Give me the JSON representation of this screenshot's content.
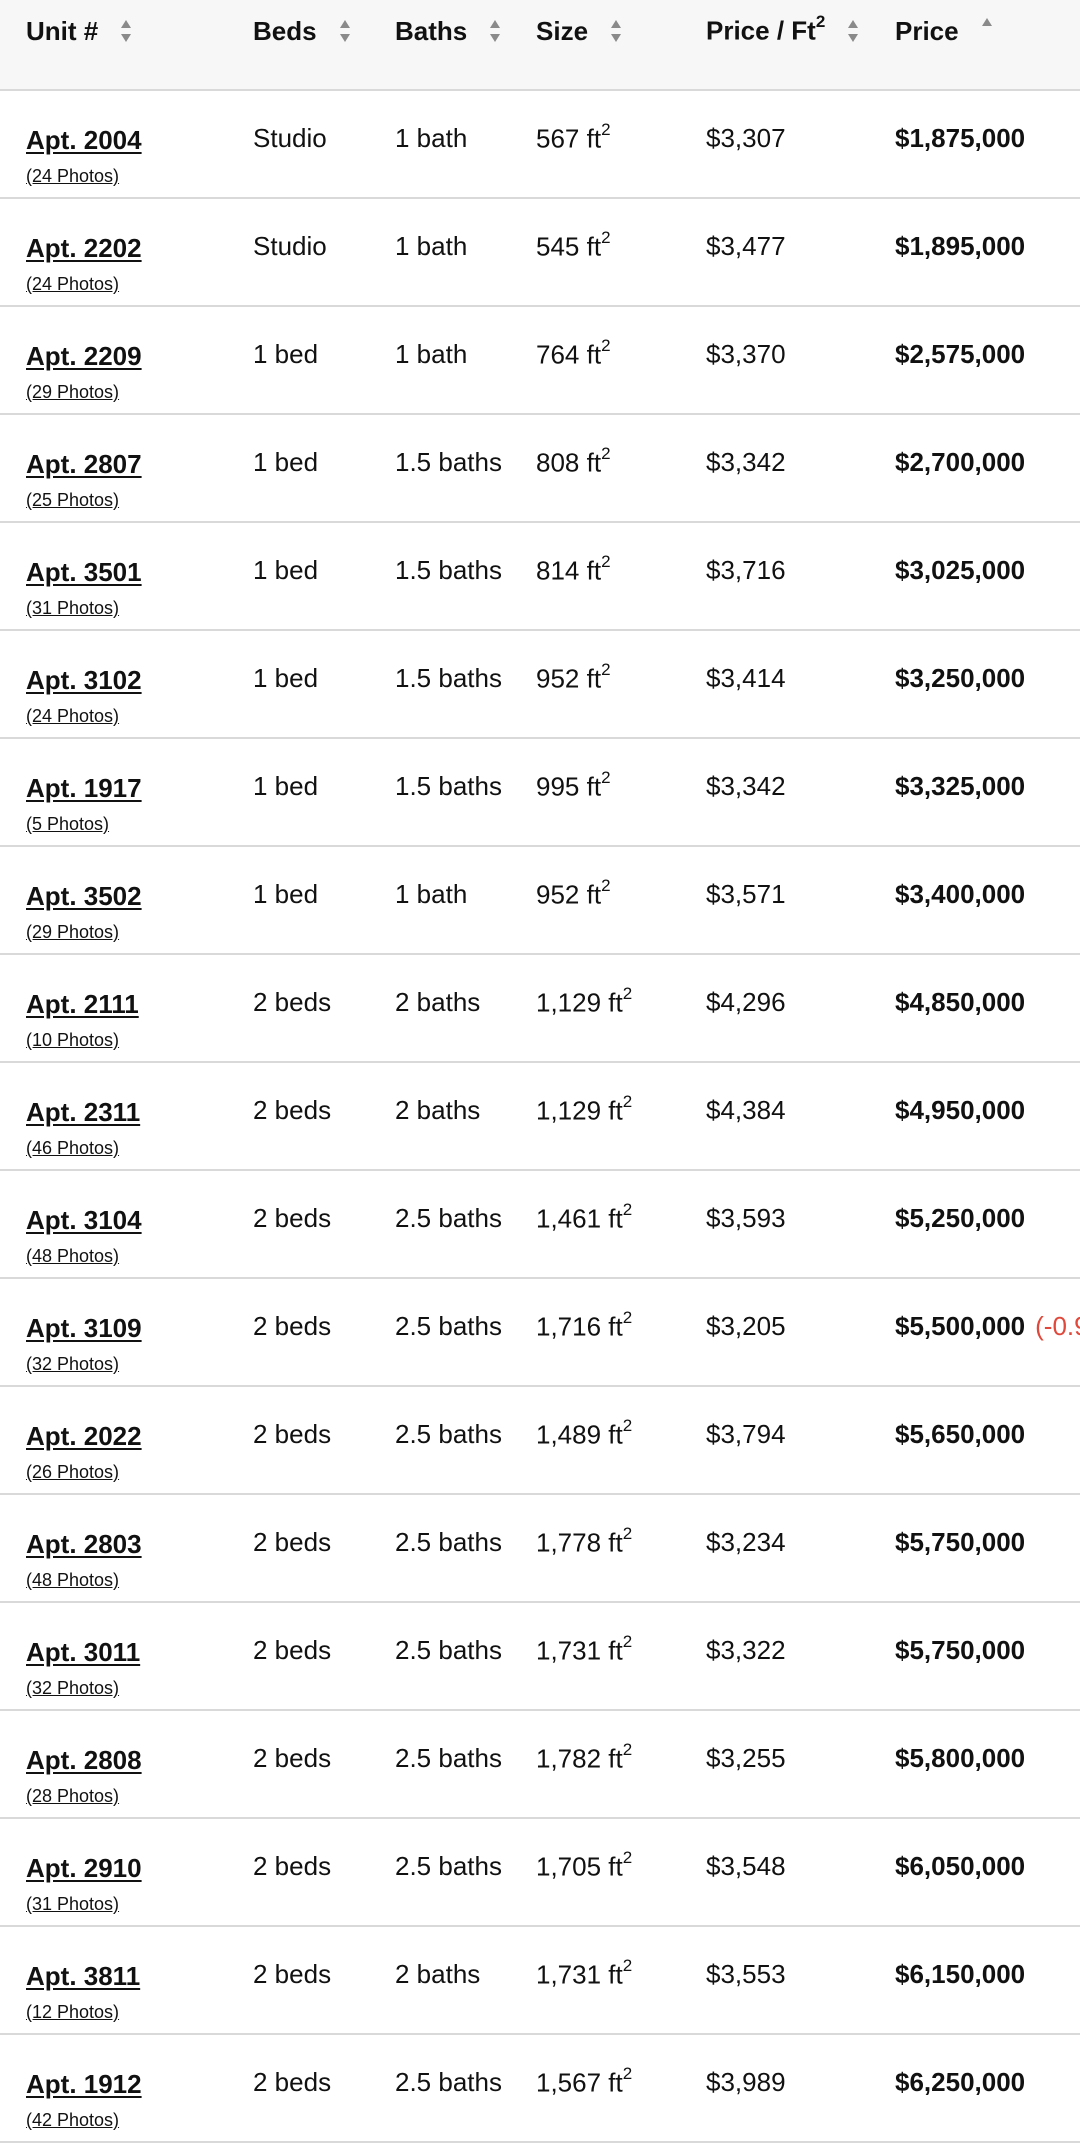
{
  "header": {
    "columns": [
      {
        "label": "Unit #",
        "sup": "",
        "sortable": true,
        "sorted": "none"
      },
      {
        "label": "Beds",
        "sup": "",
        "sortable": true,
        "sorted": "none"
      },
      {
        "label": "Baths",
        "sup": "",
        "sortable": true,
        "sorted": "none"
      },
      {
        "label": "Size",
        "sup": "",
        "sortable": true,
        "sorted": "none"
      },
      {
        "label": "Price / Ft",
        "sup": "2",
        "sortable": true,
        "sorted": "none"
      },
      {
        "label": "Price",
        "sup": "",
        "sortable": true,
        "sorted": "ascending"
      }
    ]
  },
  "units": [
    {
      "unit": "Apt. 2004",
      "photos": "(24 Photos)",
      "beds": "Studio",
      "baths": "1 bath",
      "size": "567 ft",
      "ppsf": "$3,307",
      "price": "$1,875,000",
      "change": ""
    },
    {
      "unit": "Apt. 2202",
      "photos": "(24 Photos)",
      "beds": "Studio",
      "baths": "1 bath",
      "size": "545 ft",
      "ppsf": "$3,477",
      "price": "$1,895,000",
      "change": ""
    },
    {
      "unit": "Apt. 2209",
      "photos": "(29 Photos)",
      "beds": "1 bed",
      "baths": "1 bath",
      "size": "764 ft",
      "ppsf": "$3,370",
      "price": "$2,575,000",
      "change": ""
    },
    {
      "unit": "Apt. 2807",
      "photos": "(25 Photos)",
      "beds": "1 bed",
      "baths": "1.5 baths",
      "size": "808 ft",
      "ppsf": "$3,342",
      "price": "$2,700,000",
      "change": ""
    },
    {
      "unit": "Apt. 3501",
      "photos": "(31 Photos)",
      "beds": "1 bed",
      "baths": "1.5 baths",
      "size": "814 ft",
      "ppsf": "$3,716",
      "price": "$3,025,000",
      "change": ""
    },
    {
      "unit": "Apt. 3102",
      "photos": "(24 Photos)",
      "beds": "1 bed",
      "baths": "1.5 baths",
      "size": "952 ft",
      "ppsf": "$3,414",
      "price": "$3,250,000",
      "change": ""
    },
    {
      "unit": "Apt. 1917",
      "photos": "(5 Photos)",
      "beds": "1 bed",
      "baths": "1.5 baths",
      "size": "995 ft",
      "ppsf": "$3,342",
      "price": "$3,325,000",
      "change": ""
    },
    {
      "unit": "Apt. 3502",
      "photos": "(29 Photos)",
      "beds": "1 bed",
      "baths": "1 bath",
      "size": "952 ft",
      "ppsf": "$3,571",
      "price": "$3,400,000",
      "change": ""
    },
    {
      "unit": "Apt. 2111",
      "photos": "(10 Photos)",
      "beds": "2 beds",
      "baths": "2 baths",
      "size": "1,129 ft",
      "ppsf": "$4,296",
      "price": "$4,850,000",
      "change": ""
    },
    {
      "unit": "Apt. 2311",
      "photos": "(46 Photos)",
      "beds": "2 beds",
      "baths": "2 baths",
      "size": "1,129 ft",
      "ppsf": "$4,384",
      "price": "$4,950,000",
      "change": ""
    },
    {
      "unit": "Apt. 3104",
      "photos": "(48 Photos)",
      "beds": "2 beds",
      "baths": "2.5 baths",
      "size": "1,461 ft",
      "ppsf": "$3,593",
      "price": "$5,250,000",
      "change": ""
    },
    {
      "unit": "Apt. 3109",
      "photos": "(32 Photos)",
      "beds": "2 beds",
      "baths": "2.5 baths",
      "size": "1,716 ft",
      "ppsf": "$3,205",
      "price": "$5,500,000",
      "change": "(-0.9"
    },
    {
      "unit": "Apt. 2022",
      "photos": "(26 Photos)",
      "beds": "2 beds",
      "baths": "2.5 baths",
      "size": "1,489 ft",
      "ppsf": "$3,794",
      "price": "$5,650,000",
      "change": ""
    },
    {
      "unit": "Apt. 2803",
      "photos": "(48 Photos)",
      "beds": "2 beds",
      "baths": "2.5 baths",
      "size": "1,778 ft",
      "ppsf": "$3,234",
      "price": "$5,750,000",
      "change": ""
    },
    {
      "unit": "Apt. 3011",
      "photos": "(32 Photos)",
      "beds": "2 beds",
      "baths": "2.5 baths",
      "size": "1,731 ft",
      "ppsf": "$3,322",
      "price": "$5,750,000",
      "change": ""
    },
    {
      "unit": "Apt. 2808",
      "photos": "(28 Photos)",
      "beds": "2 beds",
      "baths": "2.5 baths",
      "size": "1,782 ft",
      "ppsf": "$3,255",
      "price": "$5,800,000",
      "change": ""
    },
    {
      "unit": "Apt. 2910",
      "photos": "(31 Photos)",
      "beds": "2 beds",
      "baths": "2.5 baths",
      "size": "1,705 ft",
      "ppsf": "$3,548",
      "price": "$6,050,000",
      "change": ""
    },
    {
      "unit": "Apt. 3811",
      "photos": "(12 Photos)",
      "beds": "2 beds",
      "baths": "2 baths",
      "size": "1,731 ft",
      "ppsf": "$3,553",
      "price": "$6,150,000",
      "change": ""
    },
    {
      "unit": "Apt. 1912",
      "photos": "(42 Photos)",
      "beds": "2 beds",
      "baths": "2.5 baths",
      "size": "1,567 ft",
      "ppsf": "$3,989",
      "price": "$6,250,000",
      "change": ""
    }
  ],
  "size_unit_sup": "2",
  "colors": {
    "price_change": "#e0483b",
    "header_bg": "#f7f7f7",
    "divider": "#d9d9d9",
    "sort_icon": "#8a8a8a"
  },
  "icons": {
    "sort_both": "sort-both-icon",
    "sort_ascending": "sort-ascending-icon"
  }
}
